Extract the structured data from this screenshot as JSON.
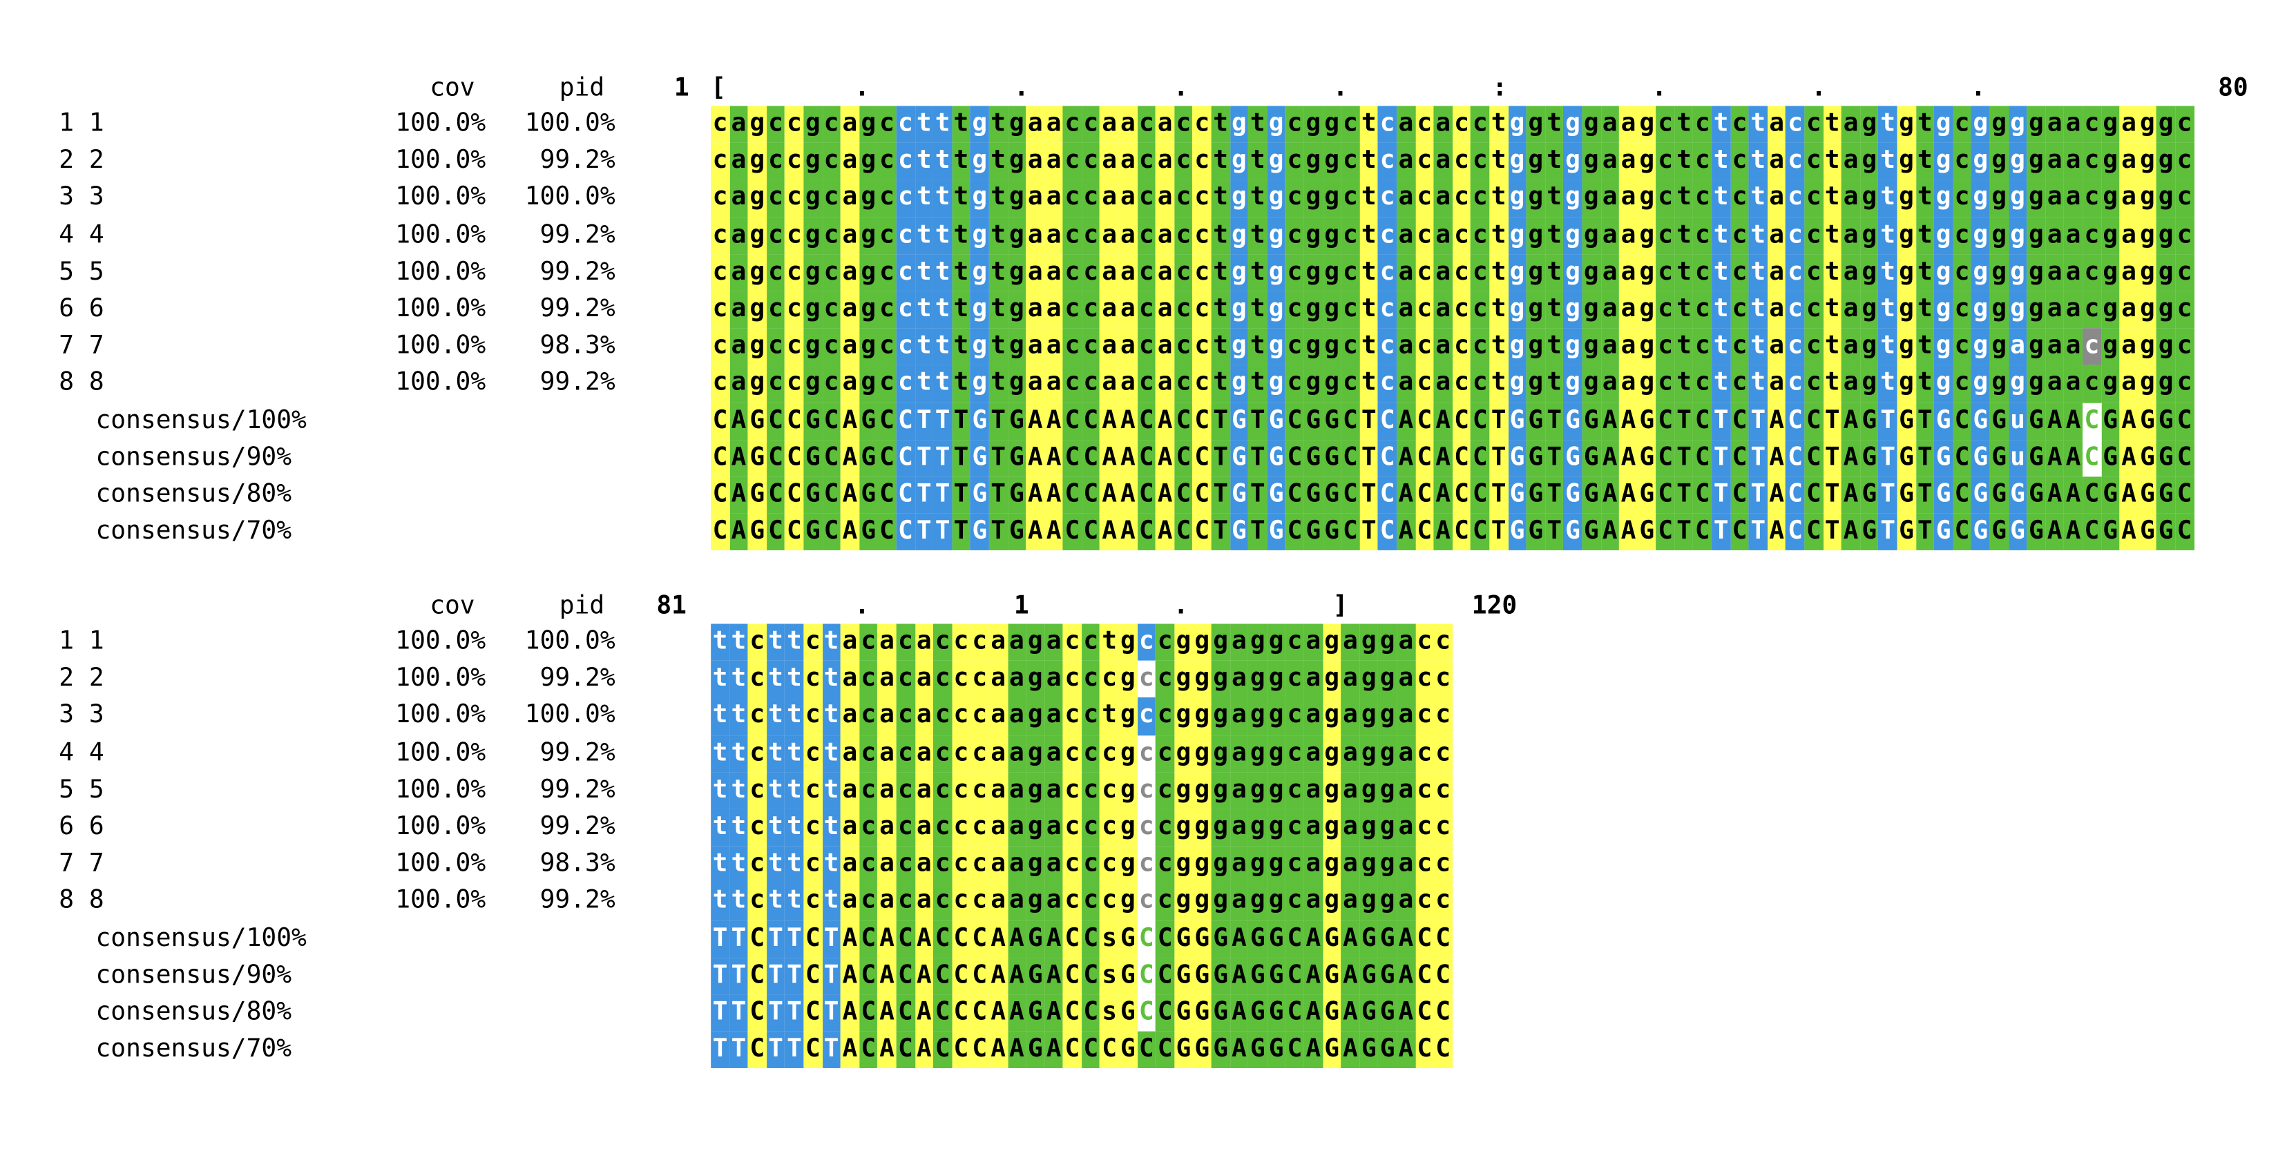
{
  "header": {
    "cov_label": "cov",
    "pid_label": "pid"
  },
  "colors": {
    "yellow": "#ffff55",
    "green": "#5dbf3a",
    "blue": "#3f93e0",
    "white": "#ffffff",
    "gray": "#8a8a8a"
  },
  "blocks": [
    {
      "start": "1",
      "end": "80",
      "ruler": "[        .         .         .         .         :         .         .         .",
      "rows": [
        {
          "id": "1 1",
          "cov": "100.0%",
          "pid": "100.0%",
          "seq": "cagccgcagcctttgtgaaccaacacctgtgcggctcacacctggtggaagctctctacctagtgtgcggggaacgaggc",
          "colors": "YGYGYGGYGGBBBGBGGYYGGYYGYGYGBGBGGGGYBGYGYGYBGGBGGYYGGGBGBYBGYGGBYGBGBGBGGGGGYYGGYGGYG"
        },
        {
          "id": "2 2",
          "cov": "100.0%",
          "pid": "99.2%",
          "seq": "cagccgcagcctttgtgaaccaacacctgtgcggctcacacctggtggaagctctctacctagtgtgcggggaacgaggc",
          "colors": "YGYGYGGYGGBBBGBGGYYGGYYGYGYGBGBGGGGYBGYGYGYBGGBGGYYGGGBGBYBGYGGBYGBGBGBGGGGGYYGGYGGYG"
        },
        {
          "id": "3 3",
          "cov": "100.0%",
          "pid": "100.0%",
          "seq": "cagccgcagcctttgtgaaccaacacctgtgcggctcacacctggtggaagctctctacctagtgtgcggggaacgaggc",
          "colors": "YGYGYGGYGGBBBGBGGYYGGYYGYGYGBGBGGGGYBGYGYGYBGGBGGYYGGGBGBYBGYGGBYGBGBGBGGGGGYYGGYGGYG"
        },
        {
          "id": "4 4",
          "cov": "100.0%",
          "pid": "99.2%",
          "seq": "cagccgcagcctttgtgaaccaacacctgtgcggctcacacctggtggaagctctctacctagtgtgcggggaacgaggc",
          "colors": "YGYGYGGYGGBBBGBGGYYGGYYGYGYGBGBGGGGYBGYGYGYBGGBGGYYGGGBGBYBGYGGBYGBGBGBGGGGGYYGGYGGYG"
        },
        {
          "id": "5 5",
          "cov": "100.0%",
          "pid": "99.2%",
          "seq": "cagccgcagcctttgtgaaccaacacctgtgcggctcacacctggtggaagctctctacctagtgtgcggggaacgaggc",
          "colors": "YGYGYGGYGGBBBGBGGYYGGYYGYGYGBGBGGGGYBGYGYGYBGGBGGYYGGGBGBYBGYGGBYGBGBGBGGGGGYYGGYGGYG"
        },
        {
          "id": "6 6",
          "cov": "100.0%",
          "pid": "99.2%",
          "seq": "cagccgcagcctttgtgaaccaacacctgtgcggctcacacctggtggaagctctctacctagtgtgcggggaacgaggc",
          "colors": "YGYGYGGYGGBBBGBGGYYGGYYGYGYGBGBGGGGYBGYGYGYBGGBGGYYGGGBGBYBGYGGBYGBGBGBGGGGGYYGGYGGYG"
        },
        {
          "id": "7 7",
          "cov": "100.0%",
          "pid": "98.3%",
          "seq": "cagccgcagcctttgtgaaccaacacctgtgcggctcacacctggtggaagctctctacctagtgtgcggagaacgaggc",
          "colors": "YGYGYGGYGGBBBGBGGYYGGYYGYGYGBGBGGGGYBGYGYGYBGGBGGYYGGGBGBYBGYGGBYGBGBGBGGGAGYYGGYGGYG"
        },
        {
          "id": "8 8",
          "cov": "100.0%",
          "pid": "99.2%",
          "seq": "cagccgcagcctttgtgaaccaacacctgtgcggctcacacctggtggaagctctctacctagtgtgcggggaacgaggc",
          "colors": "YGYGYGGYGGBBBGBGGYYGGYYGYGYGBGBGGGGYBGYGYGYBGGBGGYYGGGBGBYBGYGGBYGBGBGBGGGGGYYGGYGGYG"
        },
        {
          "id": "consensus/100%",
          "cov": "",
          "pid": "",
          "seq": "CAGCCGCAGCCTTTGTGAACCAACACCTGTGCGGCTCACACCTGGTGGAAGCTCTCTACCTAGTGTGCGGuGAACGAGGC",
          "colors": "YGYGYGGYGGBBBGBGGYYGGYYGYGYGBGBGGGGYBGYGYGYBGGBGGYYGGGBGBYBGYGGBYGBGBGBGGGUGYYGGYGGYG"
        },
        {
          "id": "consensus/90%",
          "cov": "",
          "pid": "",
          "seq": "CAGCCGCAGCCTTTGTGAACCAACACCTGTGCGGCTCACACCTGGTGGAAGCTCTCTACCTAGTGTGCGGuGAACGAGGC",
          "colors": "YGYGYGGYGGBBBGBGGYYGGYYGYGYGBGBGGGGYBGYGYGYBGGBGGYYGGGBGBYBGYGGBYGBGBGBGGGUGYYGGYGGYG"
        },
        {
          "id": "consensus/80%",
          "cov": "",
          "pid": "",
          "seq": "CAGCCGCAGCCTTTGTGAACCAACACCTGTGCGGCTCACACCTGGTGGAAGCTCTCTACCTAGTGTGCGGGGAACGAGGC",
          "colors": "YGYGYGGYGGBBBGBGGYYGGYYGYGYGBGBGGGGYBGYGYGYBGGBGGYYGGGBGBYBGYGGBYGBGBGBGGGGGYYGGYGGYG"
        },
        {
          "id": "consensus/70%",
          "cov": "",
          "pid": "",
          "seq": "CAGCCGCAGCCTTTGTGAACCAACACCTGTGCGGCTCACACCTGGTGGAAGCTCTCTACCTAGTGTGCGGGGAACGAGGC",
          "colors": "YGYGYGGYGGBBBGBGGYYGGYYGYGYGBGBGGGGYBGYGYGYBGGBGGYYGGGBGBYBGYGGBYGBGBGBGGGGGYYGGYGGYG"
        }
      ]
    },
    {
      "start": "81",
      "end": "120",
      "ruler": "         .         1         .         ]",
      "rows": [
        {
          "id": "1 1",
          "cov": "100.0%",
          "pid": "100.0%",
          "seq": "ttcttctacacacccaagacctgccgggaggcagaggacc",
          "colors": "BBYBBYBYGYGYGYYYGGGYGYYBGYYGGGGGGYGGGGYY"
        },
        {
          "id": "2 2",
          "cov": "100.0%",
          "pid": "99.2%",
          "seq": "ttcttctacacacccaagacccgccgggaggcagaggacc",
          "colors": "BBYBBYBYGYGYGYYYGGGYGYYWGYYGGGGGGYGGGGYY"
        },
        {
          "id": "3 3",
          "cov": "100.0%",
          "pid": "100.0%",
          "seq": "ttcttctacacacccaagacctgccgggaggcagaggacc",
          "colors": "BBYBBYBYGYGYGYYYGGGYGYYBGYYGGGGGGYGGGGYY"
        },
        {
          "id": "4 4",
          "cov": "100.0%",
          "pid": "99.2%",
          "seq": "ttcttctacacacccaagacccgccgggaggcagaggacc",
          "colors": "BBYBBYBYGYGYGYYYGGGYGYYWGYYGGGGGGYGGGGYY"
        },
        {
          "id": "5 5",
          "cov": "100.0%",
          "pid": "99.2%",
          "seq": "ttcttctacacacccaagacccgccgggaggcagaggacc",
          "colors": "BBYBBYBYGYGYGYYYGGGYGYYWGYYGGGGGGYGGGGYY"
        },
        {
          "id": "6 6",
          "cov": "100.0%",
          "pid": "99.2%",
          "seq": "ttcttctacacacccaagacccgccgggaggcagaggacc",
          "colors": "BBYBBYBYGYGYGYYYGGGYGYYWGYYGGGGGGYGGGGYY"
        },
        {
          "id": "7 7",
          "cov": "100.0%",
          "pid": "98.3%",
          "seq": "ttcttctacacacccaagacccgccgggaggcagaggacc",
          "colors": "BBYBBYBYGYGYGYYYGGGYGYYWGYYGGGGGGYGGGGYY"
        },
        {
          "id": "8 8",
          "cov": "100.0%",
          "pid": "99.2%",
          "seq": "ttcttctacacacccaagacccgccgggaggcagaggacc",
          "colors": "BBYBBYBYGYGYGYYYGGGYGYYWGYYGGGGGGYGGGGYY"
        },
        {
          "id": "consensus/100%",
          "cov": "",
          "pid": "",
          "seq": "TTCTTCTACACACCCAAGACCsGCCGGGAGGCAGAGGACC",
          "colors": "BBYBBYBYGYGYGYYYGGGYGYYSGYYGGGGGGYGGGGYY"
        },
        {
          "id": "consensus/90%",
          "cov": "",
          "pid": "",
          "seq": "TTCTTCTACACACCCAAGACCsGCCGGGAGGCAGAGGACC",
          "colors": "BBYBBYBYGYGYGYYYGGGYGYYSGYYGGGGGGYGGGGYY"
        },
        {
          "id": "consensus/80%",
          "cov": "",
          "pid": "",
          "seq": "TTCTTCTACACACCCAAGACCsGCCGGGAGGCAGAGGACC",
          "colors": "BBYBBYBYGYGYGYYYGGGYGYYSGYYGGGGGGYGGGGYY"
        },
        {
          "id": "consensus/70%",
          "cov": "",
          "pid": "",
          "seq": "TTCTTCTACACACCCAAGACCCGCCGGGAGGCAGAGGACC",
          "colors": "BBYBBYBYGYGYGYYYGGGYGYYGGYYGGGGGGYGGGGYY"
        }
      ]
    }
  ]
}
